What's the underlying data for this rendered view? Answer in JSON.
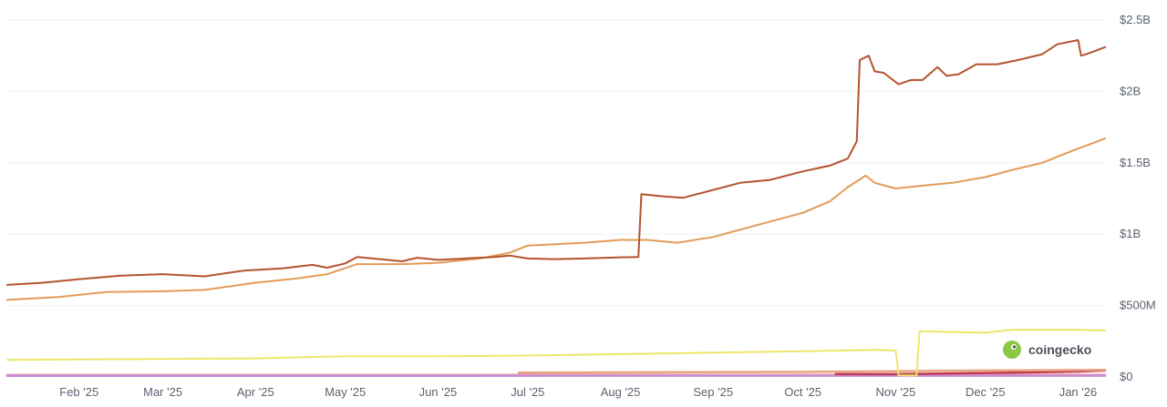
{
  "brand": {
    "name": "coingecko"
  },
  "chart_data": {
    "type": "line",
    "title": "",
    "xlabel": "",
    "ylabel": "",
    "ylim": [
      0,
      2500000000
    ],
    "y_ticks": [
      {
        "value": 0,
        "label": "$0"
      },
      {
        "value": 500000000,
        "label": "$500M"
      },
      {
        "value": 1000000000,
        "label": "$1B"
      },
      {
        "value": 1500000000,
        "label": "$1.5B"
      },
      {
        "value": 2000000000,
        "label": "$2B"
      },
      {
        "value": 2500000000,
        "label": "$2.5B"
      }
    ],
    "x_range": [
      "2025-01-08",
      "2026-01-10"
    ],
    "x_ticks": [
      {
        "value": "2025-02-01",
        "label": "Feb '25"
      },
      {
        "value": "2025-03-01",
        "label": "Mar '25"
      },
      {
        "value": "2025-04-01",
        "label": "Apr '25"
      },
      {
        "value": "2025-05-01",
        "label": "May '25"
      },
      {
        "value": "2025-06-01",
        "label": "Jun '25"
      },
      {
        "value": "2025-07-01",
        "label": "Jul '25"
      },
      {
        "value": "2025-08-01",
        "label": "Aug '25"
      },
      {
        "value": "2025-09-01",
        "label": "Sep '25"
      },
      {
        "value": "2025-10-01",
        "label": "Oct '25"
      },
      {
        "value": "2025-11-01",
        "label": "Nov '25"
      },
      {
        "value": "2025-12-01",
        "label": "Dec '25"
      },
      {
        "value": "2026-01-01",
        "label": "Jan '26"
      }
    ],
    "grid": true,
    "legend": "none",
    "series": [
      {
        "color": "#b5532f",
        "points": [
          [
            "2025-01-08",
            645000000
          ],
          [
            "2025-01-20",
            660000000
          ],
          [
            "2025-02-01",
            685000000
          ],
          [
            "2025-02-15",
            710000000
          ],
          [
            "2025-03-01",
            720000000
          ],
          [
            "2025-03-15",
            705000000
          ],
          [
            "2025-03-28",
            745000000
          ],
          [
            "2025-04-10",
            760000000
          ],
          [
            "2025-04-20",
            785000000
          ],
          [
            "2025-04-25",
            765000000
          ],
          [
            "2025-05-01",
            795000000
          ],
          [
            "2025-05-05",
            840000000
          ],
          [
            "2025-05-15",
            820000000
          ],
          [
            "2025-05-20",
            810000000
          ],
          [
            "2025-05-25",
            835000000
          ],
          [
            "2025-06-01",
            820000000
          ],
          [
            "2025-06-10",
            830000000
          ],
          [
            "2025-06-20",
            840000000
          ],
          [
            "2025-06-25",
            850000000
          ],
          [
            "2025-07-01",
            830000000
          ],
          [
            "2025-07-10",
            825000000
          ],
          [
            "2025-07-20",
            830000000
          ],
          [
            "2025-08-01",
            838000000
          ],
          [
            "2025-08-07",
            840000000
          ],
          [
            "2025-08-08",
            1280000000
          ],
          [
            "2025-08-15",
            1265000000
          ],
          [
            "2025-08-22",
            1255000000
          ],
          [
            "2025-09-01",
            1310000000
          ],
          [
            "2025-09-10",
            1360000000
          ],
          [
            "2025-09-20",
            1380000000
          ],
          [
            "2025-10-01",
            1440000000
          ],
          [
            "2025-10-10",
            1480000000
          ],
          [
            "2025-10-16",
            1530000000
          ],
          [
            "2025-10-19",
            1650000000
          ],
          [
            "2025-10-20",
            2220000000
          ],
          [
            "2025-10-23",
            2250000000
          ],
          [
            "2025-10-25",
            2140000000
          ],
          [
            "2025-10-28",
            2130000000
          ],
          [
            "2025-11-02",
            2050000000
          ],
          [
            "2025-11-06",
            2080000000
          ],
          [
            "2025-11-10",
            2080000000
          ],
          [
            "2025-11-15",
            2170000000
          ],
          [
            "2025-11-18",
            2110000000
          ],
          [
            "2025-11-22",
            2120000000
          ],
          [
            "2025-11-28",
            2190000000
          ],
          [
            "2025-12-05",
            2190000000
          ],
          [
            "2025-12-12",
            2220000000
          ],
          [
            "2025-12-20",
            2260000000
          ],
          [
            "2025-12-25",
            2330000000
          ],
          [
            "2026-01-01",
            2360000000
          ],
          [
            "2026-01-02",
            2250000000
          ],
          [
            "2026-01-05",
            2270000000
          ],
          [
            "2026-01-10",
            2310000000
          ]
        ]
      },
      {
        "color": "#e29b58",
        "points": [
          [
            "2025-01-08",
            540000000
          ],
          [
            "2025-01-25",
            560000000
          ],
          [
            "2025-02-10",
            595000000
          ],
          [
            "2025-03-01",
            600000000
          ],
          [
            "2025-03-15",
            610000000
          ],
          [
            "2025-04-01",
            660000000
          ],
          [
            "2025-04-15",
            690000000
          ],
          [
            "2025-04-25",
            720000000
          ],
          [
            "2025-05-05",
            790000000
          ],
          [
            "2025-05-20",
            790000000
          ],
          [
            "2025-06-01",
            800000000
          ],
          [
            "2025-06-15",
            830000000
          ],
          [
            "2025-06-25",
            870000000
          ],
          [
            "2025-07-01",
            920000000
          ],
          [
            "2025-07-20",
            940000000
          ],
          [
            "2025-08-01",
            960000000
          ],
          [
            "2025-08-10",
            960000000
          ],
          [
            "2025-08-20",
            940000000
          ],
          [
            "2025-09-01",
            980000000
          ],
          [
            "2025-09-15",
            1060000000
          ],
          [
            "2025-10-01",
            1150000000
          ],
          [
            "2025-10-10",
            1230000000
          ],
          [
            "2025-10-16",
            1330000000
          ],
          [
            "2025-10-22",
            1410000000
          ],
          [
            "2025-10-25",
            1360000000
          ],
          [
            "2025-11-01",
            1320000000
          ],
          [
            "2025-11-10",
            1340000000
          ],
          [
            "2025-11-20",
            1360000000
          ],
          [
            "2025-12-01",
            1400000000
          ],
          [
            "2025-12-10",
            1450000000
          ],
          [
            "2025-12-20",
            1500000000
          ],
          [
            "2026-01-01",
            1600000000
          ],
          [
            "2026-01-05",
            1630000000
          ],
          [
            "2026-01-10",
            1670000000
          ]
        ]
      },
      {
        "color": "#ece76a",
        "points": [
          [
            "2025-01-08",
            120000000
          ],
          [
            "2025-04-01",
            130000000
          ],
          [
            "2025-05-01",
            145000000
          ],
          [
            "2025-06-01",
            145000000
          ],
          [
            "2025-07-01",
            150000000
          ],
          [
            "2025-08-01",
            160000000
          ],
          [
            "2025-09-01",
            170000000
          ],
          [
            "2025-10-01",
            180000000
          ],
          [
            "2025-10-25",
            190000000
          ],
          [
            "2025-11-01",
            185000000
          ],
          [
            "2025-11-02",
            10000000
          ],
          [
            "2025-11-08",
            10000000
          ],
          [
            "2025-11-09",
            320000000
          ],
          [
            "2025-12-01",
            310000000
          ],
          [
            "2025-12-10",
            330000000
          ],
          [
            "2026-01-01",
            330000000
          ],
          [
            "2026-01-10",
            325000000
          ]
        ]
      },
      {
        "color": "#e8a383",
        "points": [
          [
            "2025-06-28",
            30000000
          ],
          [
            "2025-08-01",
            32000000
          ],
          [
            "2025-10-01",
            35000000
          ],
          [
            "2025-11-01",
            40000000
          ],
          [
            "2025-12-01",
            45000000
          ],
          [
            "2026-01-10",
            50000000
          ]
        ]
      },
      {
        "color": "#c2394e",
        "points": [
          [
            "2025-10-12",
            20000000
          ],
          [
            "2025-11-01",
            20000000
          ],
          [
            "2025-11-20",
            25000000
          ],
          [
            "2025-12-10",
            30000000
          ],
          [
            "2026-01-01",
            38000000
          ],
          [
            "2026-01-10",
            45000000
          ]
        ]
      },
      {
        "color": "#c98bd9",
        "points": [
          [
            "2025-01-08",
            8000000
          ],
          [
            "2025-06-01",
            8000000
          ],
          [
            "2026-01-10",
            9000000
          ]
        ]
      },
      {
        "color": "#e7a2a2",
        "points": [
          [
            "2025-01-08",
            14000000
          ],
          [
            "2025-06-01",
            14000000
          ],
          [
            "2026-01-10",
            15000000
          ]
        ]
      }
    ]
  }
}
